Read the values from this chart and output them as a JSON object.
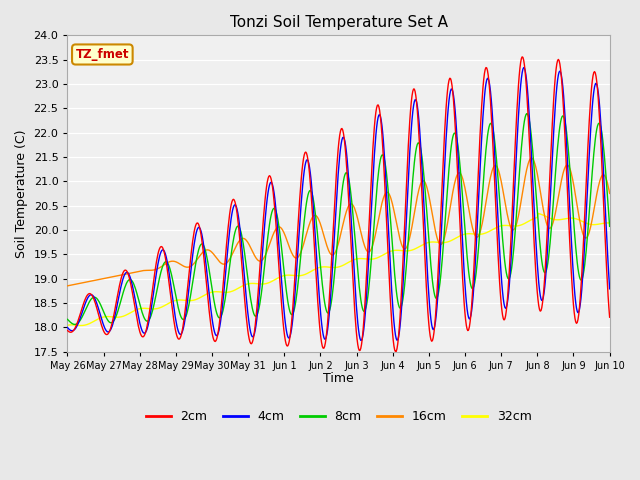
{
  "title": "Tonzi Soil Temperature Set A",
  "xlabel": "Time",
  "ylabel": "Soil Temperature (C)",
  "ylim": [
    17.5,
    24.0
  ],
  "yticks": [
    17.5,
    18.0,
    18.5,
    19.0,
    19.5,
    20.0,
    20.5,
    21.0,
    21.5,
    22.0,
    22.5,
    23.0,
    23.5,
    24.0
  ],
  "xtick_labels": [
    "May 26",
    "May 27",
    "May 28",
    "May 29",
    "May 30",
    "May 31",
    "Jun 1",
    "Jun 2",
    "Jun 3",
    "Jun 4",
    "Jun 5",
    "Jun 6",
    "Jun 7",
    "Jun 8",
    "Jun 9",
    "Jun 10"
  ],
  "colors": {
    "2cm": "#ff0000",
    "4cm": "#0000ff",
    "8cm": "#00cc00",
    "16cm": "#ff8800",
    "32cm": "#ffff00"
  },
  "legend_label": "TZ_fmet",
  "legend_box_color": "#ffffcc",
  "legend_box_edge": "#cc8800",
  "bg_color": "#e8e8e8",
  "plot_bg_color": "#f0f0f0",
  "linewidth": 1.0
}
